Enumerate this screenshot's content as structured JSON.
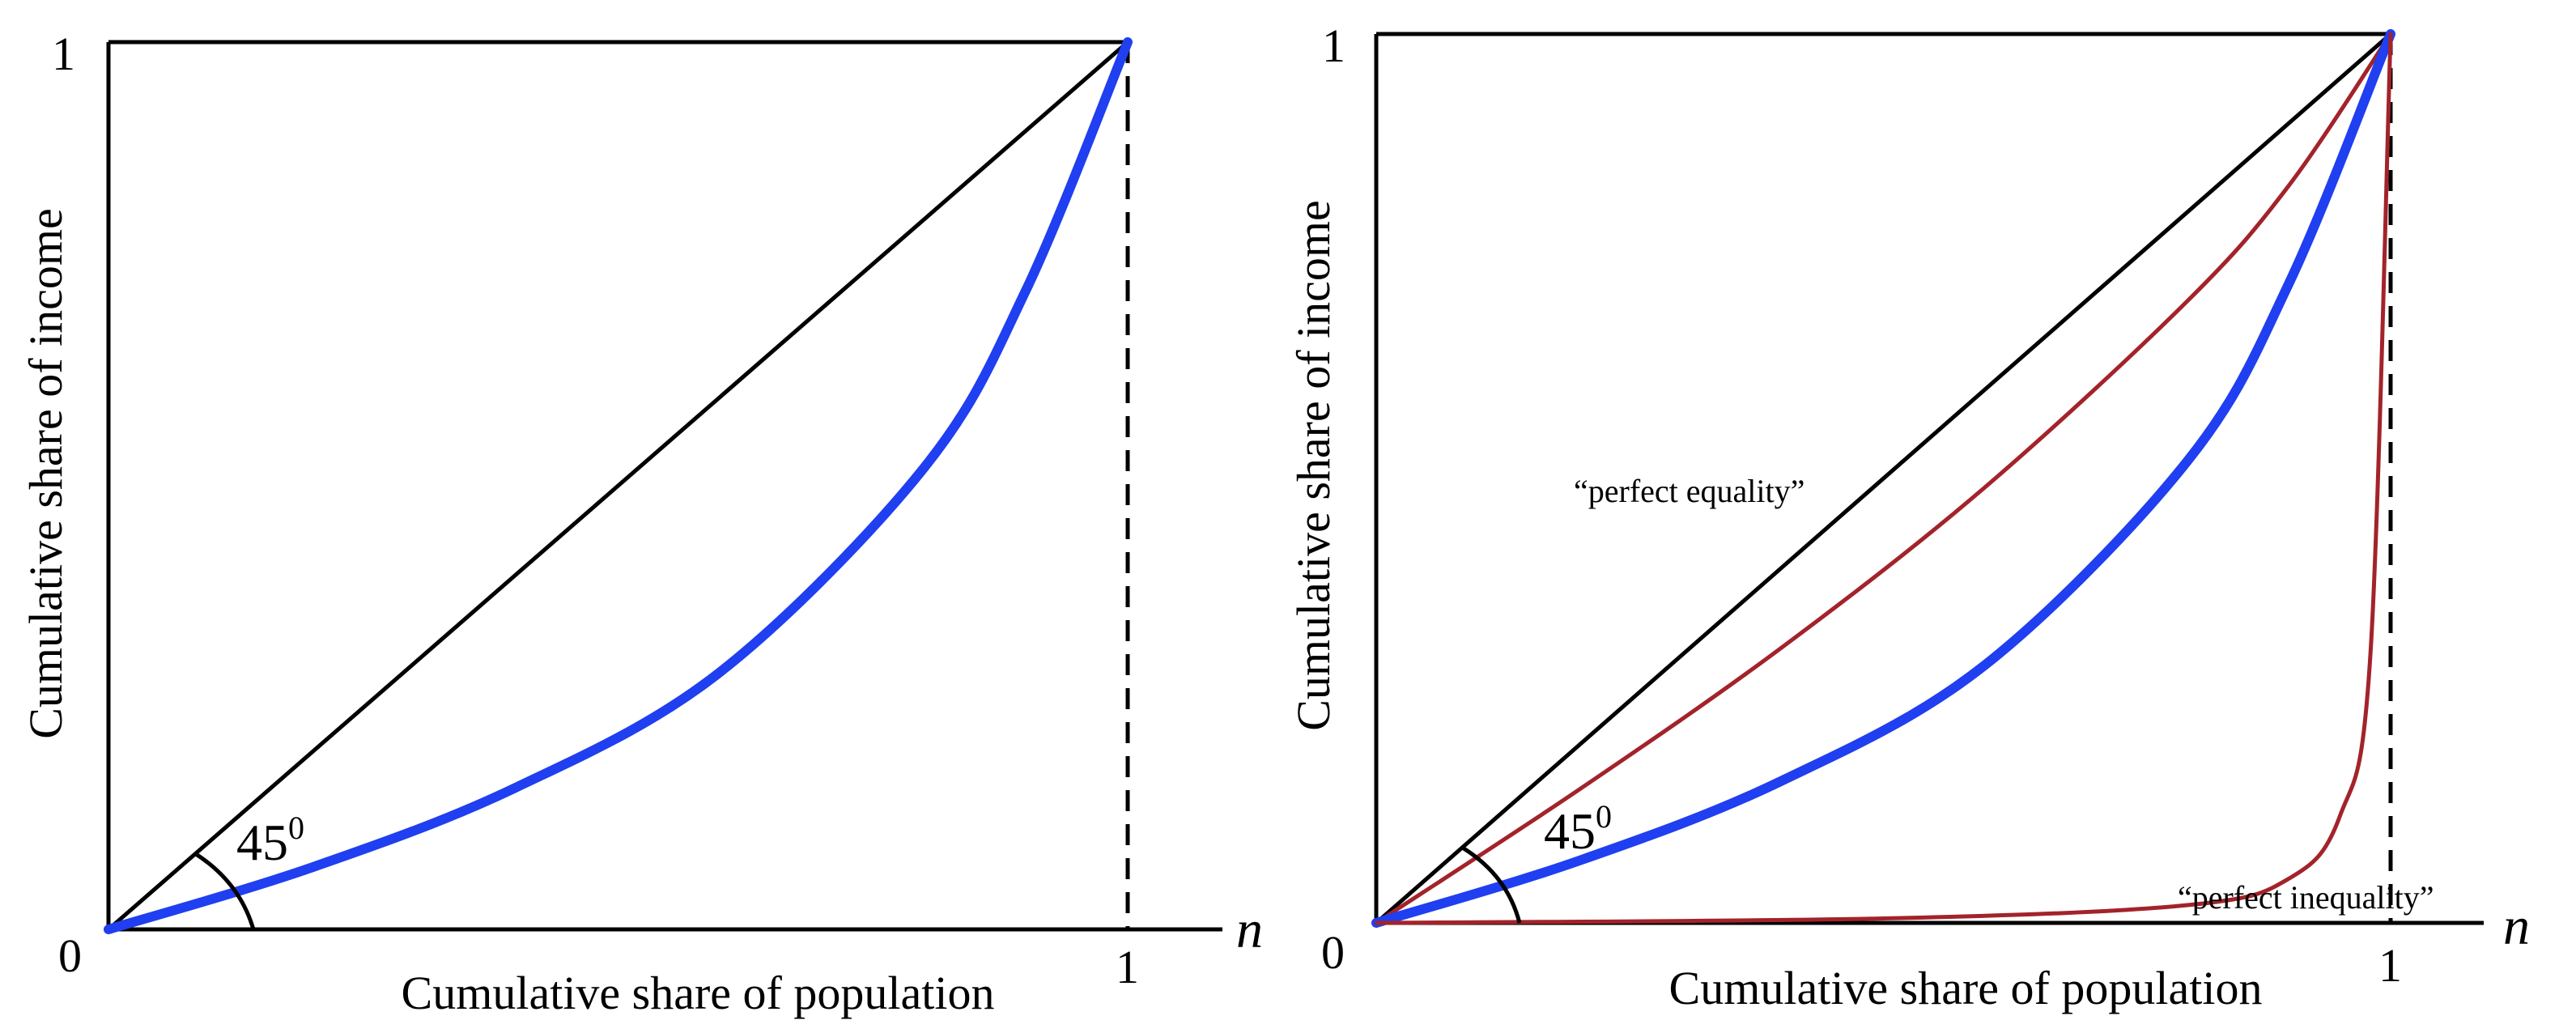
{
  "panels": [
    {
      "id": "left",
      "y_tick_top": "1",
      "origin_label": "0",
      "x_tick_right": "1",
      "x_axis_var": "n",
      "xlabel": "Cumulative share of population",
      "ylabel": "Cumulative share of income",
      "angle_value": "45",
      "angle_sup": "0"
    },
    {
      "id": "right",
      "y_tick_top": "1",
      "origin_label": "0",
      "x_tick_right": "1",
      "x_axis_var": "n",
      "xlabel": "Cumulative share of population",
      "ylabel": "Cumulative share of income",
      "angle_value": "45",
      "angle_sup": "0",
      "label_equality": "“perfect equality”",
      "label_inequality": "“perfect inequality”"
    }
  ],
  "colors": {
    "axes": "#000000",
    "lorenz_curve": "#1f3ff0",
    "bounding_curves": "#a3232b",
    "background": "#ffffff"
  },
  "chart_data": [
    {
      "type": "line",
      "xlim": [
        0,
        1
      ],
      "ylim": [
        0,
        1
      ],
      "series": [
        {
          "x": [
            0,
            1
          ],
          "y": [
            0,
            1
          ]
        },
        {
          "x": [
            0,
            0.2,
            0.4,
            0.6,
            0.8,
            0.9,
            1.0
          ],
          "y": [
            0,
            0.07,
            0.16,
            0.29,
            0.52,
            0.72,
            1.0
          ]
        }
      ]
    },
    {
      "type": "line",
      "xlim": [
        0,
        1
      ],
      "ylim": [
        0,
        1
      ],
      "series": [
        {
          "x": [
            0,
            1
          ],
          "y": [
            0,
            1
          ]
        },
        {
          "x": [
            0,
            0.2,
            0.4,
            0.6,
            0.8,
            0.9,
            1.0
          ],
          "y": [
            0,
            0.15,
            0.31,
            0.49,
            0.7,
            0.83,
            1.0
          ]
        },
        {
          "x": [
            0,
            0.2,
            0.4,
            0.6,
            0.8,
            0.9,
            1.0
          ],
          "y": [
            0,
            0.07,
            0.16,
            0.29,
            0.52,
            0.72,
            1.0
          ]
        },
        {
          "x": [
            0,
            0.5,
            0.8,
            0.9,
            0.95,
            0.98,
            1.0
          ],
          "y": [
            0,
            0.005,
            0.02,
            0.05,
            0.12,
            0.3,
            1.0
          ]
        }
      ]
    }
  ]
}
